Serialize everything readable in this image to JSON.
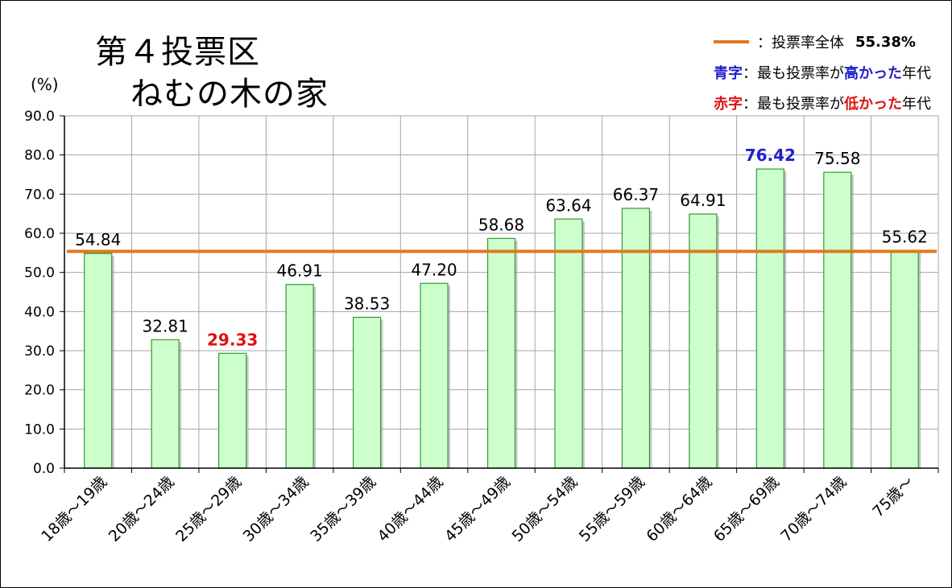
{
  "chart_data": {
    "type": "bar",
    "title_line1": "第４投票区",
    "title_line2": "ねむの木の家",
    "ylabel": "(%)",
    "ylim": [
      0,
      90
    ],
    "yticks": [
      "0.0",
      "10.0",
      "20.0",
      "30.0",
      "40.0",
      "50.0",
      "60.0",
      "70.0",
      "80.0",
      "90.0"
    ],
    "grid": true,
    "categories": [
      "18歳～19歳",
      "20歳～24歳",
      "25歳～29歳",
      "30歳～34歳",
      "35歳～39歳",
      "40歳～44歳",
      "45歳～49歳",
      "50歳～54歳",
      "55歳～59歳",
      "60歳～64歳",
      "65歳～69歳",
      "70歳～74歳",
      "75歳～"
    ],
    "values": [
      54.84,
      32.81,
      29.33,
      46.91,
      38.53,
      47.2,
      58.68,
      63.64,
      66.37,
      64.91,
      76.42,
      75.58,
      55.62
    ],
    "value_labels": [
      "54.84",
      "32.81",
      "29.33",
      "46.91",
      "38.53",
      "47.20",
      "58.68",
      "63.64",
      "66.37",
      "64.91",
      "76.42",
      "75.58",
      "55.62"
    ],
    "highest_index": 10,
    "lowest_index": 2,
    "reference_line": {
      "value": 55.38
    },
    "legend_placement": "top-right"
  },
  "legend": {
    "overall_label": "：投票率全体",
    "overall_value": "55.38%",
    "blue_key": "青字",
    "blue_prefix": "：最も投票率が",
    "blue_emph": "高かった",
    "blue_suffix": "年代",
    "red_key": "赤字",
    "red_prefix": "：最も投票率が",
    "red_emph": "低かった",
    "red_suffix": "年代"
  },
  "colors": {
    "bar_fill": "#ccffcc",
    "bar_stroke": "#339933",
    "reference_line": "#e07820",
    "highest": "#1f1fcc",
    "lowest": "#e01010",
    "grid": "#a6a6a6",
    "axis": "#000000"
  }
}
